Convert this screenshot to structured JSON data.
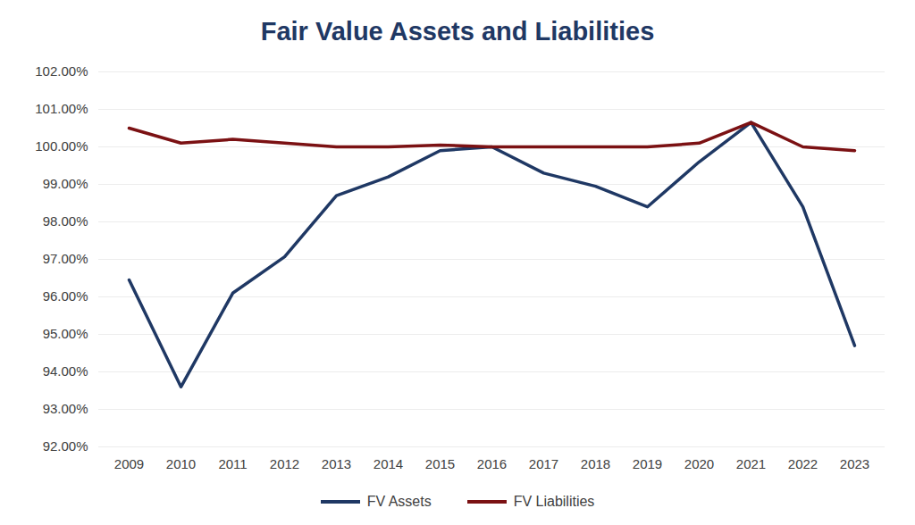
{
  "chart_data": {
    "type": "line",
    "title": "Fair Value Assets and Liabilities",
    "categories": [
      "2009",
      "2010",
      "2011",
      "2012",
      "2013",
      "2014",
      "2015",
      "2016",
      "2017",
      "2018",
      "2019",
      "2020",
      "2021",
      "2022",
      "2023"
    ],
    "series": [
      {
        "name": "FV Assets",
        "color": "#1f3864",
        "values": [
          96.45,
          93.6,
          96.1,
          97.07,
          98.7,
          99.2,
          99.9,
          100.0,
          99.3,
          98.95,
          98.4,
          99.6,
          100.65,
          98.4,
          94.7
        ]
      },
      {
        "name": "FV Liabilities",
        "color": "#7b1113",
        "values": [
          100.5,
          100.1,
          100.2,
          100.1,
          100.0,
          100.0,
          100.05,
          100.0,
          100.0,
          100.0,
          100.0,
          100.1,
          100.65,
          100.0,
          99.9
        ]
      }
    ],
    "ylim": [
      92,
      102
    ],
    "yticks": [
      {
        "value": 92,
        "label": "92.00%"
      },
      {
        "value": 93,
        "label": "93.00%"
      },
      {
        "value": 94,
        "label": "94.00%"
      },
      {
        "value": 95,
        "label": "95.00%"
      },
      {
        "value": 96,
        "label": "96.00%"
      },
      {
        "value": 97,
        "label": "97.00%"
      },
      {
        "value": 98,
        "label": "98.00%"
      },
      {
        "value": 99,
        "label": "99.00%"
      },
      {
        "value": 100,
        "label": "100.00%"
      },
      {
        "value": 101,
        "label": "101.00%"
      },
      {
        "value": 102,
        "label": "102.00%"
      }
    ],
    "grid": true,
    "legend": "bottom"
  }
}
